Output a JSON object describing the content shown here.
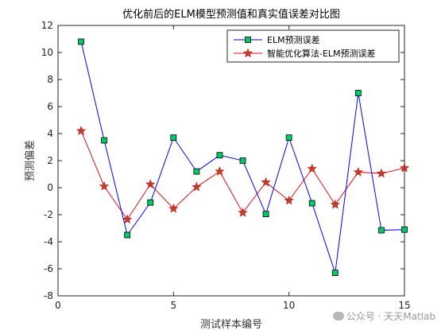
{
  "chart_data": {
    "type": "line",
    "title": "优化前后的ELM模型预测值和真实值误差对比图",
    "xlabel": "测试样本编号",
    "ylabel": "预测偏差",
    "xlim": [
      0,
      15
    ],
    "ylim": [
      -8,
      12
    ],
    "xticks": [
      0,
      5,
      10,
      15
    ],
    "yticks": [
      -8,
      -6,
      -4,
      -2,
      0,
      2,
      4,
      6,
      8,
      10,
      12
    ],
    "grid": false,
    "legend_position": "top-right",
    "x": [
      1,
      2,
      3,
      4,
      5,
      6,
      7,
      8,
      9,
      10,
      11,
      12,
      13,
      14,
      15
    ],
    "series": [
      {
        "name": "ELM预测误差",
        "color": "#0000ff",
        "marker": "square",
        "marker_fill": "#00cc66",
        "values": [
          10.8,
          3.5,
          -3.5,
          -1.1,
          3.7,
          1.2,
          2.4,
          2.0,
          -1.95,
          3.7,
          -1.15,
          -6.3,
          7.0,
          -3.15,
          -3.1
        ]
      },
      {
        "name": "智能优化算法-ELM预测误差",
        "color": "#dd1111",
        "marker": "star",
        "marker_fill": "#a0522d",
        "values": [
          4.2,
          0.1,
          -2.35,
          0.25,
          -1.55,
          0.05,
          1.2,
          -1.85,
          0.4,
          -0.95,
          1.4,
          -1.25,
          1.15,
          1.05,
          1.45
        ]
      }
    ]
  },
  "watermark": {
    "icon": "wechat-icon",
    "text": "公众号 · 天天Matlab"
  }
}
